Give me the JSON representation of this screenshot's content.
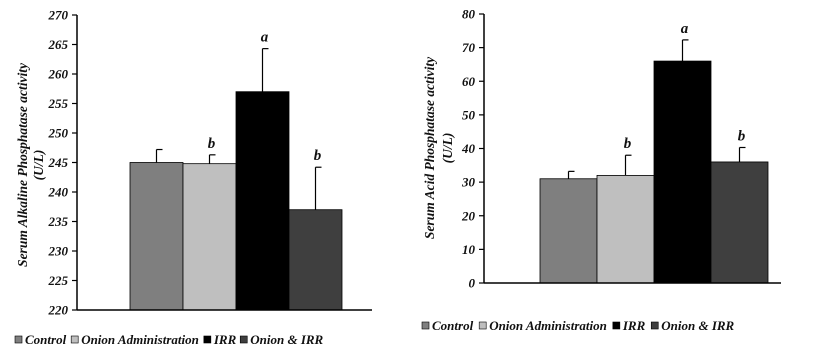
{
  "chart_data": [
    {
      "type": "bar",
      "ylabel_line1": "Serum Alkaline Phosphatase activity",
      "ylabel_line2": "(U/L)",
      "ylim": [
        220,
        270
      ],
      "yticks": [
        220,
        225,
        230,
        235,
        240,
        245,
        250,
        255,
        260,
        265,
        270
      ],
      "categories": [
        "Control",
        "Onion Administration",
        "IRR",
        "Onion & IRR"
      ],
      "values": [
        245,
        244.8,
        257,
        237
      ],
      "errors": [
        2.2,
        1.5,
        7.3,
        7.2
      ],
      "significance": [
        "",
        "b",
        "a",
        "b"
      ],
      "colors": [
        "#7f7f7f",
        "#bfbfbf",
        "#000000",
        "#3f3f3f"
      ],
      "grid": false,
      "legend_position": "bottom",
      "legend": [
        "Control",
        "Onion Administration",
        "IRR",
        "Onion & IRR"
      ]
    },
    {
      "type": "bar",
      "ylabel_line1": "Serum Acid Phosphatase activity",
      "ylabel_line2": "(U/L)",
      "ylim": [
        0,
        80
      ],
      "yticks": [
        0,
        10,
        20,
        30,
        40,
        50,
        60,
        70,
        80
      ],
      "categories": [
        "Control",
        "Onion Administration",
        "IRR",
        "Onion & IRR"
      ],
      "values": [
        31,
        32,
        66,
        36
      ],
      "errors": [
        2.2,
        6,
        6.3,
        4.3
      ],
      "significance": [
        "",
        "b",
        "a",
        "b"
      ],
      "colors": [
        "#7f7f7f",
        "#bfbfbf",
        "#000000",
        "#3f3f3f"
      ],
      "grid": false,
      "legend_position": "bottom",
      "legend": [
        "Control",
        "Onion Administration",
        "IRR",
        "Onion & IRR"
      ]
    }
  ]
}
